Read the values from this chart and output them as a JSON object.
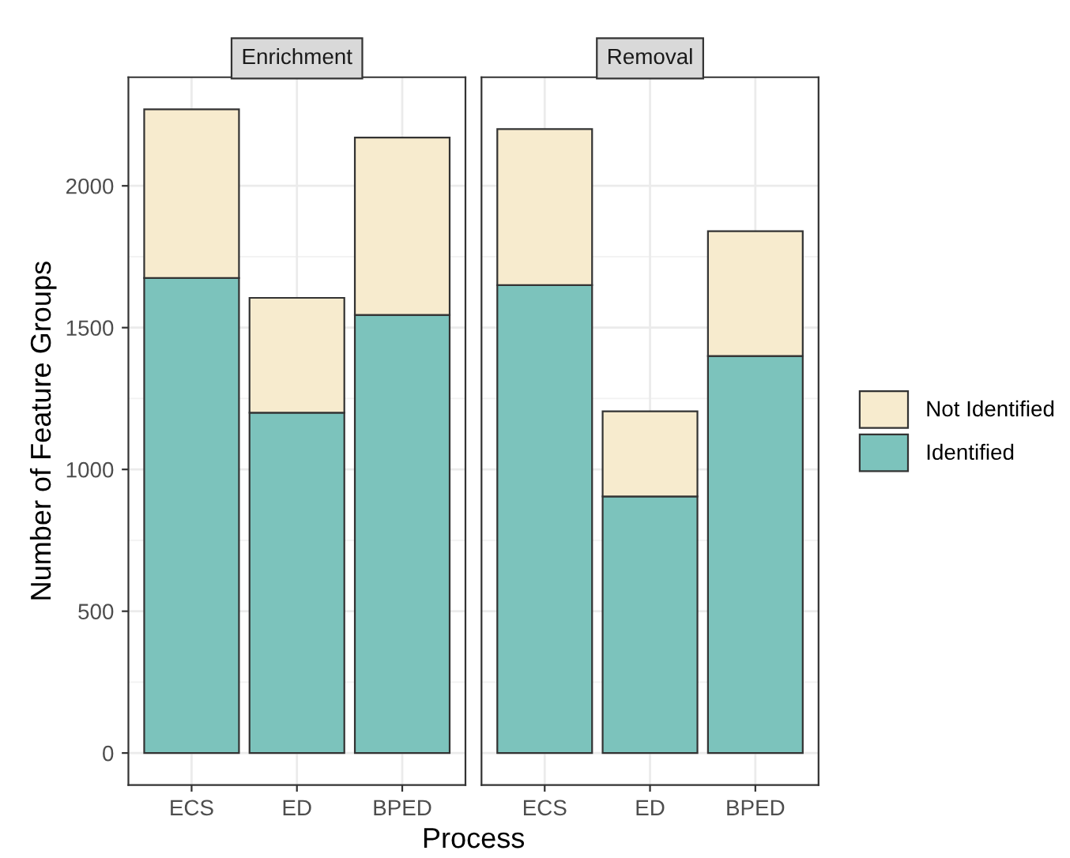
{
  "chart_data": [
    {
      "type": "bar",
      "title": "Enrichment",
      "stacked": true,
      "categories": [
        "ECS",
        "ED",
        "BPED"
      ],
      "ylabel": "Number of Feature Groups",
      "xlabel": "Process",
      "series": [
        {
          "name": "Identified",
          "color": "#7cc3bc",
          "values": [
            1675,
            1200,
            1545
          ]
        },
        {
          "name": "Not Identified",
          "color": "#f7ebce",
          "values": [
            595,
            405,
            625
          ]
        }
      ],
      "ylim": [
        -113,
        2383
      ],
      "yticks": [
        0,
        500,
        1000,
        1500,
        2000
      ],
      "grid": true,
      "legend": "right"
    },
    {
      "type": "bar",
      "title": "Removal",
      "stacked": true,
      "categories": [
        "ECS",
        "ED",
        "BPED"
      ],
      "series": [
        {
          "color": "#7cc3bc",
          "values": [
            1650,
            905,
            1400
          ]
        },
        {
          "color": "#f7ebce",
          "values": [
            550,
            300,
            440
          ]
        }
      ],
      "ylim": [
        -113,
        2383
      ],
      "yticks": [
        0,
        500,
        1000,
        1500,
        2000
      ],
      "grid": true,
      "tick_labels": "x"
    }
  ]
}
